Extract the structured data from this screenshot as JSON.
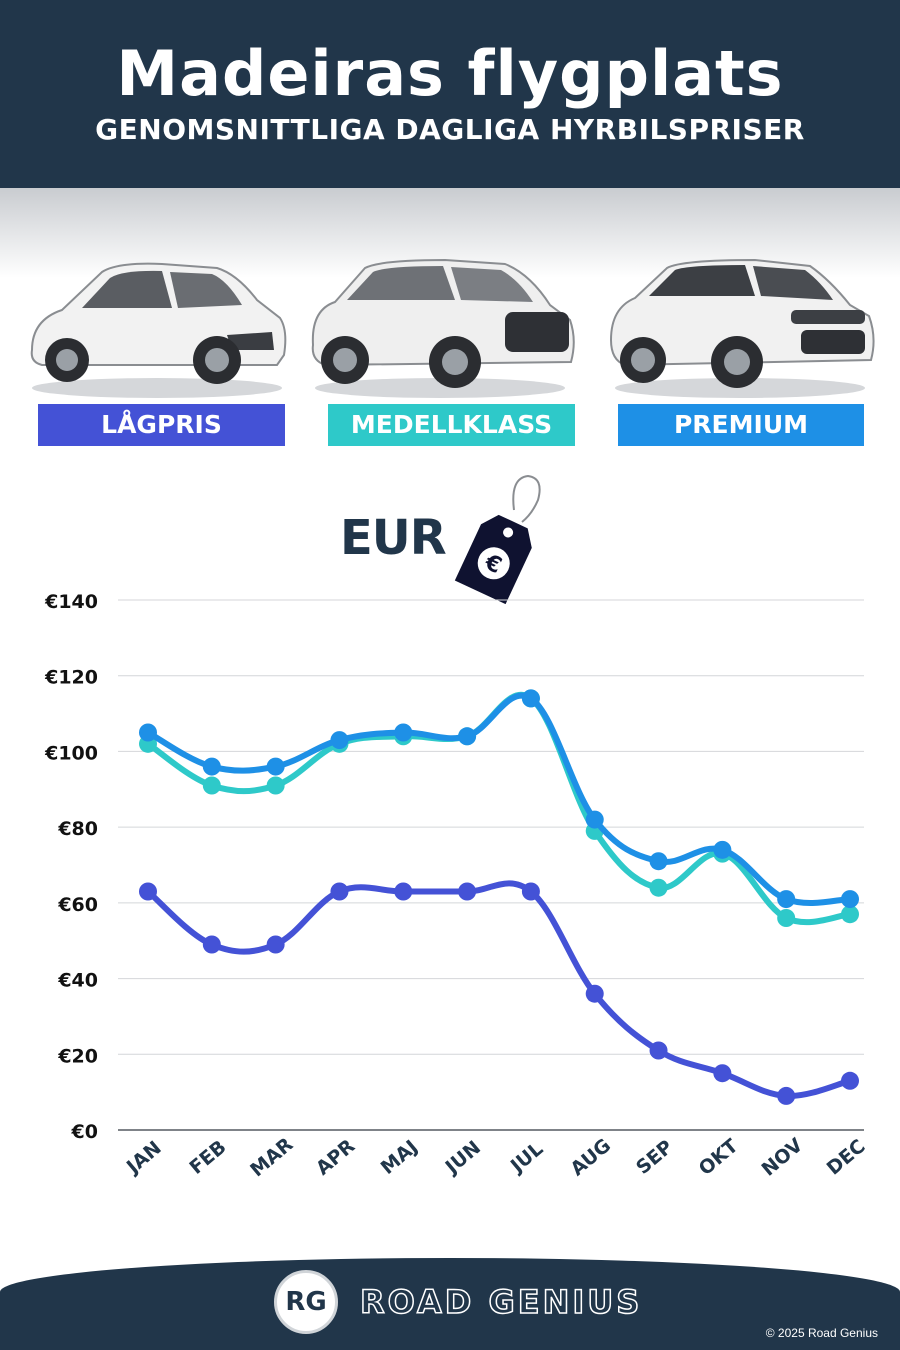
{
  "header": {
    "title": "Madeiras flygplats",
    "subtitle": "GENOMSNITTLIGA DAGLIGA HYRBILSPRISER"
  },
  "categories": [
    {
      "label": "LÅGPRIS",
      "color": "#4452d6"
    },
    {
      "label": "MEDELLKLASS",
      "color": "#2ec9c9"
    },
    {
      "label": "PREMIUM",
      "color": "#1e90e6"
    }
  ],
  "currency_label": "EUR",
  "currency_symbol": "€",
  "chart_data": {
    "type": "line",
    "categories": [
      "JAN",
      "FEB",
      "MAR",
      "APR",
      "MAJ",
      "JUN",
      "JUL",
      "AUG",
      "SEP",
      "OKT",
      "NOV",
      "DEC"
    ],
    "ylim": [
      0,
      140
    ],
    "yticks": [
      0,
      20,
      40,
      60,
      80,
      100,
      120,
      140
    ],
    "ytick_labels": [
      "€0",
      "€20",
      "€40",
      "€60",
      "€80",
      "€100",
      "€120",
      "€140"
    ],
    "grid": true,
    "series": [
      {
        "name": "LÅGPRIS",
        "color": "#4452d6",
        "values": [
          63,
          49,
          49,
          63,
          63,
          63,
          63,
          36,
          21,
          15,
          9,
          13
        ]
      },
      {
        "name": "MEDELLKLASS",
        "color": "#2ec9c9",
        "values": [
          102,
          91,
          91,
          102,
          104,
          104,
          114,
          79,
          64,
          73,
          56,
          57
        ]
      },
      {
        "name": "PREMIUM",
        "color": "#1e90e6",
        "values": [
          105,
          96,
          96,
          103,
          105,
          104,
          114,
          82,
          71,
          74,
          61,
          61
        ]
      }
    ]
  },
  "footer": {
    "logo_text": "RG",
    "brand": "ROAD GENIUS",
    "copyright": "© 2025 Road Genius"
  }
}
